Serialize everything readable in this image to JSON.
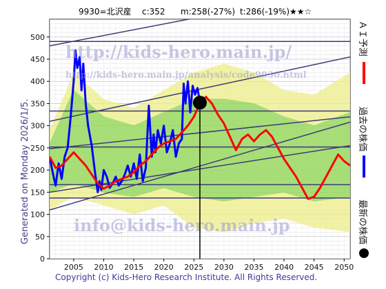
{
  "title": {
    "code_name": "9930=北沢産",
    "current": "c:352",
    "min": "m:258(-27%)",
    "target": "t:286(-19%)",
    "stars": "★★☆"
  },
  "watermarks": {
    "url_main": "http://kids-hero.main.jp/",
    "url_analysis": "http://kids-hero.main.jp/analysis/code9930.html",
    "email": "info@kids-hero.main.jp"
  },
  "generated_label": "Generated on Monday 2026/1/5.",
  "copyright": "Copyright (c) Kids-Hero Research Institute. All Rights Reserved.",
  "legend": [
    {
      "label": "ＡＩ予測",
      "color": "#ff0000",
      "marker": "line"
    },
    {
      "label": "過去の株価",
      "color": "#0000ff",
      "marker": "line"
    },
    {
      "label": "最新の株価",
      "color": "#000000",
      "marker": "dot"
    }
  ],
  "colors": {
    "ai_forecast": "#ff0000",
    "past_price": "#0000ff",
    "latest_marker": "#000000",
    "band_green": "#22bb22",
    "band_yellow": "#eeee88",
    "trend_lines": "#3a3a7a"
  },
  "chart_data": {
    "type": "line",
    "xlim": [
      2001,
      2051
    ],
    "ylim": [
      0,
      540
    ],
    "x_ticks": [
      2005,
      2010,
      2015,
      2020,
      2025,
      2030,
      2035,
      2040,
      2045,
      2050
    ],
    "y_ticks": [
      0,
      50,
      100,
      150,
      200,
      250,
      300,
      350,
      400,
      450,
      500
    ],
    "grid": true,
    "latest": {
      "x": 2026.0,
      "y": 352
    },
    "horizontal_levels": [
      490,
      333,
      252,
      167,
      137
    ],
    "trend_lines": [
      {
        "x": [
          2001,
          2051
        ],
        "y": [
          480,
          610
        ]
      },
      {
        "x": [
          2001,
          2051
        ],
        "y": [
          310,
          455
        ]
      },
      {
        "x": [
          2001,
          2051
        ],
        "y": [
          248,
          320
        ]
      },
      {
        "x": [
          2001,
          2051
        ],
        "y": [
          110,
          308
        ]
      },
      {
        "x": [
          2001,
          2051
        ],
        "y": [
          150,
          255
        ]
      }
    ],
    "series": [
      {
        "name": "過去の株価",
        "x": [
          2001,
          2001.5,
          2002,
          2002.5,
          2003,
          2003.5,
          2004,
          2004.5,
          2005,
          2005.3,
          2005.6,
          2006,
          2006.3,
          2006.6,
          2007,
          2007.4,
          2008,
          2008.5,
          2009,
          2009.3,
          2009.6,
          2010,
          2010.5,
          2011,
          2011.5,
          2012,
          2012.5,
          2013,
          2013.5,
          2014,
          2014.5,
          2015,
          2015.5,
          2016,
          2016.5,
          2017,
          2017.5,
          2018,
          2018.3,
          2018.6,
          2019,
          2019.5,
          2020,
          2020.5,
          2021,
          2021.5,
          2022,
          2022.5,
          2023,
          2023.3,
          2023.6,
          2024,
          2024.4,
          2024.8,
          2025.2,
          2025.6,
          2026
        ],
        "y": [
          230,
          195,
          165,
          215,
          180,
          230,
          250,
          320,
          400,
          470,
          430,
          455,
          380,
          440,
          350,
          300,
          255,
          200,
          150,
          175,
          155,
          200,
          185,
          160,
          170,
          185,
          165,
          175,
          190,
          210,
          185,
          215,
          180,
          235,
          175,
          205,
          345,
          230,
          280,
          240,
          290,
          260,
          300,
          240,
          260,
          290,
          230,
          260,
          270,
          395,
          350,
          400,
          330,
          390,
          370,
          385,
          352
        ]
      },
      {
        "name": "ＡＩ予測",
        "x": [
          2001,
          2002,
          2003,
          2004,
          2005,
          2006,
          2007,
          2008,
          2009,
          2010,
          2011,
          2012,
          2013,
          2014,
          2015,
          2016,
          2017,
          2018,
          2019,
          2020,
          2021,
          2022,
          2023,
          2024,
          2025,
          2026,
          2027,
          2028,
          2029,
          2030,
          2031,
          2032,
          2033,
          2034,
          2035,
          2036,
          2037,
          2038,
          2039,
          2040,
          2041,
          2042,
          2043,
          2044,
          2045,
          2046,
          2047,
          2048,
          2049,
          2050,
          2051
        ],
        "y": [
          230,
          205,
          210,
          225,
          240,
          225,
          210,
          190,
          170,
          158,
          165,
          175,
          180,
          185,
          195,
          210,
          220,
          235,
          250,
          260,
          265,
          270,
          285,
          300,
          320,
          350,
          365,
          350,
          325,
          305,
          275,
          245,
          270,
          280,
          265,
          280,
          290,
          275,
          250,
          225,
          205,
          185,
          160,
          135,
          140,
          160,
          185,
          210,
          235,
          220,
          210
        ]
      }
    ],
    "band_outer": {
      "x": [
        2001,
        2005,
        2010,
        2015,
        2020,
        2025,
        2030,
        2035,
        2040,
        2045,
        2051
      ],
      "upper": [
        290,
        420,
        360,
        340,
        380,
        420,
        440,
        420,
        380,
        370,
        420
      ],
      "lower": [
        110,
        140,
        120,
        100,
        120,
        70,
        60,
        80,
        90,
        70,
        60
      ]
    },
    "band_inner": {
      "x": [
        2001,
        2005,
        2010,
        2015,
        2020,
        2025,
        2030,
        2035,
        2040,
        2045,
        2051
      ],
      "upper": [
        260,
        380,
        320,
        300,
        330,
        360,
        360,
        350,
        320,
        300,
        330
      ],
      "lower": [
        150,
        170,
        150,
        140,
        160,
        140,
        130,
        140,
        150,
        130,
        140
      ]
    }
  }
}
